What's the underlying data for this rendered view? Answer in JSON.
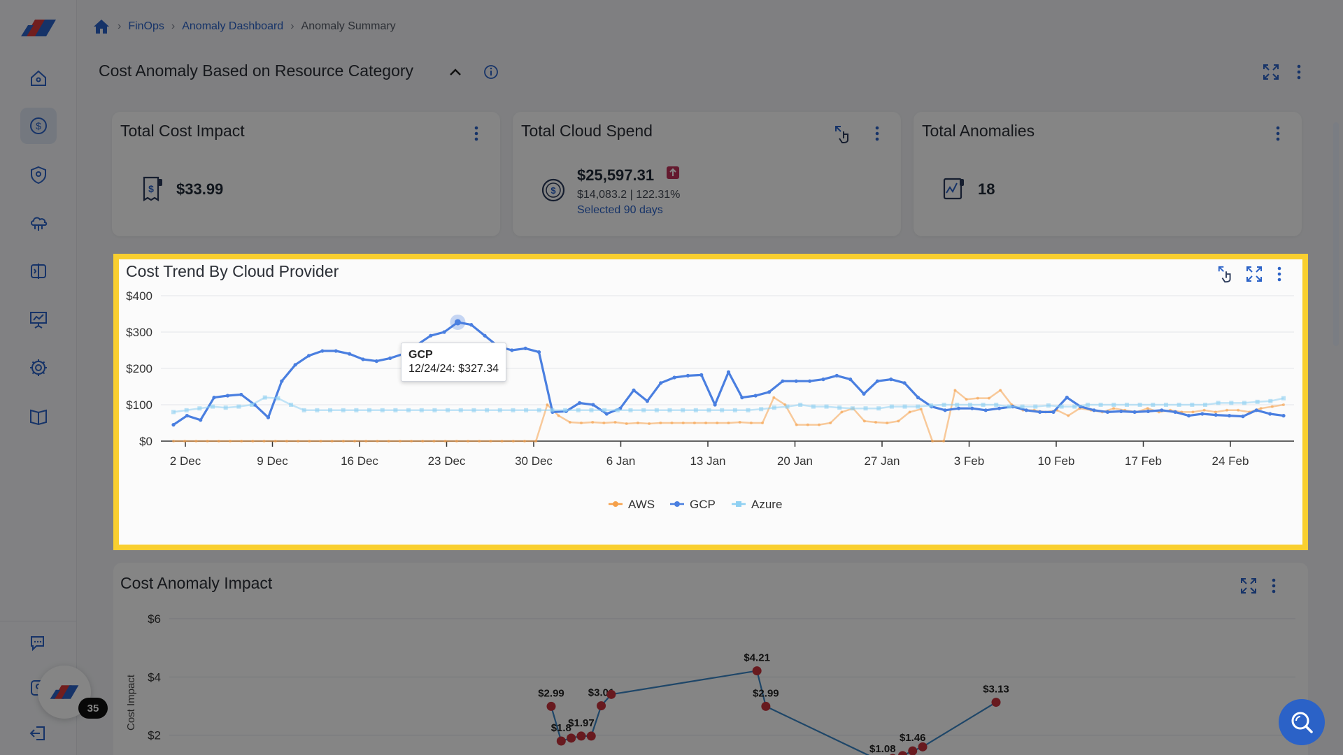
{
  "breadcrumb": [
    "FinOps",
    "Anomaly Dashboard",
    "Anomaly Summary"
  ],
  "section": {
    "title": "Cost Anomaly Based on Resource Category"
  },
  "cards": {
    "total_cost_impact": {
      "title": "Total Cost Impact",
      "value": "$33.99"
    },
    "total_cloud_spend": {
      "title": "Total Cloud Spend",
      "value": "$25,597.31",
      "sub": "$14,083.2 | 122.31%",
      "link": "Selected 90 days"
    },
    "total_anomalies": {
      "title": "Total Anomalies",
      "value": "18"
    }
  },
  "badge_count": "35",
  "colors": {
    "accent": "#2b62c7",
    "aws": "#f5a04a",
    "gcp": "#4a7fe0",
    "azure": "#8fd0f2",
    "highlight": "#f9cf2f",
    "anomaly_point": "#c8323c"
  },
  "chart_data": [
    {
      "type": "line",
      "title": "Cost Trend By Cloud Provider",
      "xlabel": "",
      "ylabel": "",
      "ylim": [
        0,
        400
      ],
      "yticks": [
        "$0",
        "$100",
        "$200",
        "$300",
        "$400"
      ],
      "x_ticks": [
        "2 Dec",
        "9 Dec",
        "16 Dec",
        "23 Dec",
        "30 Dec",
        "6 Jan",
        "13 Jan",
        "20 Jan",
        "27 Jan",
        "3 Feb",
        "10 Feb",
        "17 Feb",
        "24 Feb"
      ],
      "x_start_index": -1,
      "grid": true,
      "legend_position": "bottom",
      "tooltip": {
        "series": "GCP",
        "text": "12/24/24: $327.34"
      },
      "series": [
        {
          "name": "AWS",
          "color": "#f5a04a",
          "values": [
            0,
            0,
            0,
            0,
            0,
            0,
            0,
            0,
            0,
            0,
            0,
            0,
            0,
            0,
            0,
            0,
            0,
            0,
            0,
            0,
            0,
            0,
            0,
            0,
            0,
            0,
            0,
            0,
            0,
            0,
            0,
            0,
            0,
            100,
            70,
            52,
            50,
            52,
            50,
            52,
            48,
            50,
            48,
            50,
            50,
            50,
            50,
            50,
            50,
            50,
            52,
            50,
            50,
            120,
            100,
            45,
            45,
            45,
            50,
            80,
            90,
            55,
            52,
            50,
            55,
            80,
            88,
            0,
            0,
            140,
            115,
            118,
            118,
            140,
            100,
            85,
            85,
            80,
            85,
            70,
            90,
            85,
            80,
            90,
            85,
            80,
            90,
            80,
            85,
            80,
            80,
            85,
            80,
            85,
            85,
            80,
            90,
            95,
            100
          ]
        },
        {
          "name": "GCP",
          "color": "#4a7fe0",
          "values": [
            45,
            70,
            58,
            120,
            125,
            128,
            100,
            65,
            165,
            210,
            235,
            248,
            248,
            240,
            225,
            220,
            228,
            240,
            265,
            290,
            300,
            327,
            320,
            290,
            260,
            250,
            255,
            245,
            80,
            82,
            105,
            100,
            75,
            90,
            140,
            110,
            160,
            175,
            180,
            182,
            100,
            190,
            120,
            125,
            135,
            165,
            165,
            165,
            170,
            180,
            170,
            130,
            165,
            170,
            160,
            120,
            95,
            85,
            90,
            90,
            85,
            90,
            95,
            85,
            80,
            80,
            120,
            95,
            85,
            80,
            82,
            80,
            82,
            85,
            80,
            70,
            75,
            72,
            70,
            68,
            85,
            75,
            70
          ]
        },
        {
          "name": "Azure",
          "color": "#8fd0f2",
          "values": [
            80,
            85,
            90,
            95,
            92,
            95,
            100,
            120,
            118,
            100,
            85,
            85,
            85,
            85,
            85,
            85,
            85,
            85,
            85,
            85,
            85,
            85,
            85,
            85,
            85,
            85,
            85,
            85,
            85,
            85,
            85,
            85,
            85,
            85,
            85,
            85,
            85,
            85,
            85,
            85,
            85,
            85,
            85,
            85,
            85,
            88,
            92,
            95,
            100,
            95,
            95,
            92,
            90,
            90,
            90,
            95,
            95,
            95,
            98,
            100,
            100,
            100,
            100,
            100,
            95,
            95,
            95,
            98,
            95,
            95,
            100,
            100,
            100,
            100,
            100,
            100,
            100,
            100,
            100,
            100,
            105,
            105,
            105,
            108,
            110,
            118
          ]
        }
      ]
    },
    {
      "type": "line",
      "title": "Cost Anomaly Impact",
      "xlabel": "",
      "ylabel": "Cost Impact",
      "ylim": [
        0,
        6
      ],
      "yticks": [
        "$2",
        "$4",
        "$6"
      ],
      "grid": true,
      "points": [
        {
          "x": 0.0,
          "y": 2.99,
          "label": "$2.99"
        },
        {
          "x": 0.9,
          "y": 1.8,
          "label": "$1.8"
        },
        {
          "x": 1.8,
          "y": 1.9,
          "label": ""
        },
        {
          "x": 2.7,
          "y": 1.97,
          "label": "$1.97"
        },
        {
          "x": 3.6,
          "y": 1.97,
          "label": ""
        },
        {
          "x": 4.5,
          "y": 3.01,
          "label": "$3.01"
        },
        {
          "x": 5.4,
          "y": 3.4,
          "label": ""
        },
        {
          "x": 18.5,
          "y": 4.21,
          "label": "$4.21"
        },
        {
          "x": 19.3,
          "y": 2.99,
          "label": "$2.99"
        },
        {
          "x": 29.8,
          "y": 1.08,
          "label": "$1.08"
        },
        {
          "x": 30.7,
          "y": 1.2,
          "label": ""
        },
        {
          "x": 31.6,
          "y": 1.3,
          "label": ""
        },
        {
          "x": 32.5,
          "y": 1.46,
          "label": "$1.46"
        },
        {
          "x": 33.4,
          "y": 1.6,
          "label": ""
        },
        {
          "x": 40.0,
          "y": 3.13,
          "label": "$3.13"
        }
      ]
    }
  ]
}
